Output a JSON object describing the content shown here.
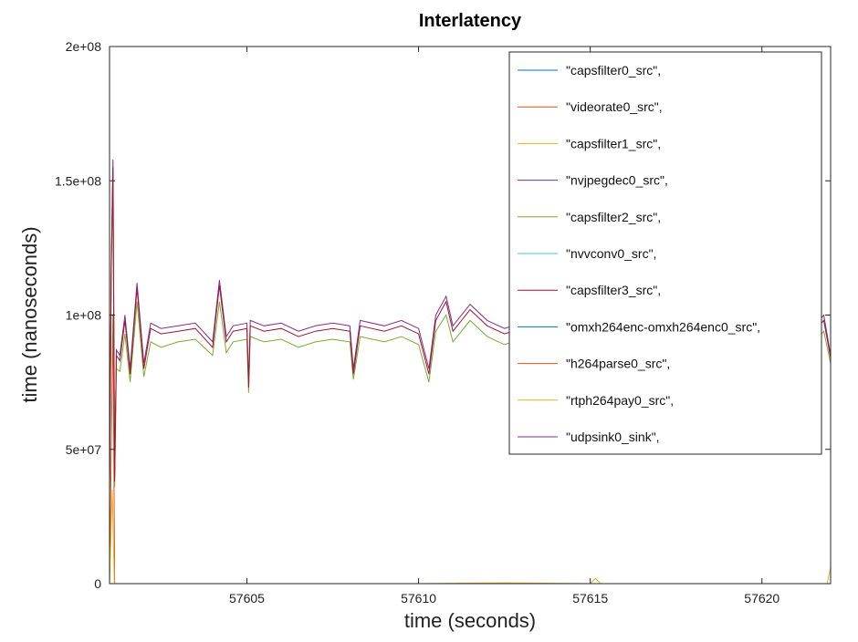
{
  "chart_data": {
    "type": "line",
    "title": "Interlatency",
    "xlabel": "time (seconds)",
    "ylabel": "time (nanoseconds)",
    "xlim": [
      57601.0,
      57622.0
    ],
    "ylim": [
      0,
      200000000
    ],
    "xticks": [
      57605,
      57610,
      57615,
      57620
    ],
    "xtick_labels": [
      "57605",
      "57610",
      "57615",
      "57620"
    ],
    "yticks": [
      0,
      50000000,
      100000000,
      150000000,
      200000000
    ],
    "ytick_labels": [
      "0",
      "5e+07",
      "1e+08",
      "1.5e+08",
      "2e+08"
    ],
    "grid": false,
    "legend_position": "top-right",
    "series": [
      {
        "name": "\"capsfilter0_src\",",
        "color": "#0072bd",
        "x": [
          57601.0,
          57622.0
        ],
        "values": [
          0,
          0
        ]
      },
      {
        "name": "\"videorate0_src\",",
        "color": "#d95319",
        "x": [
          57601.0,
          57601.1,
          57601.15,
          57601.2,
          57622.0
        ],
        "values": [
          0,
          100000000,
          0,
          0,
          0
        ]
      },
      {
        "name": "\"capsfilter1_src\",",
        "color": "#edb120",
        "x": [
          57601.0,
          57601.08,
          57601.14,
          57601.2,
          57605.0,
          57610.0,
          57612.5,
          57615.0,
          57615.15,
          57615.3,
          57620.0,
          57621.9,
          57622.0
        ],
        "values": [
          0,
          35000000,
          0,
          0,
          0,
          0,
          300000,
          0,
          2000000,
          0,
          0,
          0,
          6000000
        ]
      },
      {
        "name": "\"nvjpegdec0_src\",",
        "color": "#7e2f8e",
        "x": [
          57601.0,
          57601.05,
          57601.1,
          57601.15,
          57601.2,
          57601.3,
          57601.45,
          57601.6,
          57601.8,
          57602.0,
          57602.2,
          57602.5,
          57603.0,
          57603.5,
          57604.0,
          57604.2,
          57604.4,
          57604.6,
          57605.0,
          57605.05,
          57605.1,
          57605.5,
          57606.0,
          57606.5,
          57607.0,
          57607.5,
          57608.0,
          57608.1,
          57608.3,
          57609.0,
          57609.5,
          57610.0,
          57610.3,
          57610.5,
          57610.8,
          57611.0,
          57611.5,
          57612.0,
          57612.5,
          57613.0,
          57613.5,
          57614.0,
          57614.5,
          57614.8,
          57615.0,
          57615.5,
          57616.0,
          57616.5,
          57617.0,
          57617.5,
          57617.7,
          57618.0,
          57618.5,
          57619.0,
          57619.5,
          57620.0,
          57620.5,
          57620.8,
          57621.0,
          57621.3,
          57621.6,
          57621.8,
          57622.0
        ],
        "values": [
          35000000,
          120000000,
          158000000,
          40000000,
          87000000,
          85000000,
          100000000,
          80000000,
          112000000,
          82000000,
          97000000,
          95000000,
          96000000,
          97000000,
          90000000,
          113000000,
          92000000,
          96000000,
          97000000,
          75000000,
          98000000,
          96000000,
          97000000,
          94000000,
          96000000,
          97000000,
          96000000,
          80000000,
          98000000,
          96000000,
          98000000,
          95000000,
          80000000,
          100000000,
          107000000,
          96000000,
          104000000,
          98000000,
          95000000,
          97000000,
          96000000,
          95000000,
          97000000,
          75000000,
          96000000,
          98000000,
          96000000,
          97000000,
          95000000,
          96000000,
          75000000,
          98000000,
          96000000,
          97000000,
          95000000,
          96000000,
          97000000,
          78000000,
          96000000,
          95000000,
          97000000,
          100000000,
          85000000
        ]
      },
      {
        "name": "\"capsfilter2_src\",",
        "color": "#77ac30",
        "x": [
          57601.0,
          57601.05,
          57601.1,
          57601.15,
          57601.2,
          57601.3,
          57601.45,
          57601.6,
          57601.8,
          57602.0,
          57602.2,
          57602.5,
          57603.0,
          57603.5,
          57604.0,
          57604.2,
          57604.4,
          57604.6,
          57605.0,
          57605.05,
          57605.1,
          57605.5,
          57606.0,
          57606.5,
          57607.0,
          57607.5,
          57608.0,
          57608.1,
          57608.3,
          57609.0,
          57609.5,
          57610.0,
          57610.3,
          57610.5,
          57610.8,
          57611.0,
          57611.5,
          57612.0,
          57612.5,
          57613.0,
          57613.5,
          57614.0,
          57614.5,
          57614.8,
          57615.0,
          57615.5,
          57616.0,
          57616.5,
          57617.0,
          57617.5,
          57617.7,
          57618.0,
          57618.5,
          57619.0,
          57619.5,
          57620.0,
          57620.5,
          57620.8,
          57621.0,
          57621.3,
          57621.6,
          57621.8,
          57622.0
        ],
        "values": [
          33000000,
          115000000,
          150000000,
          36000000,
          80000000,
          79000000,
          93000000,
          75000000,
          105000000,
          77000000,
          90000000,
          88000000,
          90000000,
          91000000,
          85000000,
          105000000,
          86000000,
          90000000,
          91000000,
          71000000,
          92000000,
          90000000,
          91000000,
          88000000,
          90000000,
          91000000,
          90000000,
          76000000,
          92000000,
          90000000,
          92000000,
          89000000,
          75000000,
          94000000,
          100000000,
          90000000,
          98000000,
          92000000,
          89000000,
          91000000,
          90000000,
          89000000,
          91000000,
          71000000,
          90000000,
          92000000,
          90000000,
          91000000,
          89000000,
          90000000,
          71000000,
          92000000,
          90000000,
          91000000,
          89000000,
          90000000,
          91000000,
          74000000,
          90000000,
          89000000,
          91000000,
          94000000,
          82000000
        ]
      },
      {
        "name": "\"nvvconv0_src\",",
        "color": "#4dbeee",
        "x": [
          57601.0,
          57622.0
        ],
        "values": [
          0,
          0
        ]
      },
      {
        "name": "\"capsfilter3_src\",",
        "color": "#a2142f",
        "x": [
          57601.0,
          57601.05,
          57601.1,
          57601.15,
          57601.2,
          57601.3,
          57601.45,
          57601.6,
          57601.8,
          57602.0,
          57602.2,
          57602.5,
          57603.0,
          57603.5,
          57604.0,
          57604.2,
          57604.4,
          57604.6,
          57605.0,
          57605.05,
          57605.1,
          57605.5,
          57606.0,
          57606.5,
          57607.0,
          57607.5,
          57608.0,
          57608.1,
          57608.3,
          57609.0,
          57609.5,
          57610.0,
          57610.3,
          57610.5,
          57610.8,
          57611.0,
          57611.5,
          57612.0,
          57612.5,
          57613.0,
          57613.5,
          57614.0,
          57614.5,
          57614.8,
          57615.0,
          57615.5,
          57616.0,
          57616.5,
          57617.0,
          57617.5,
          57617.7,
          57618.0,
          57618.5,
          57619.0,
          57619.5,
          57620.0,
          57620.5,
          57620.8,
          57621.0,
          57621.3,
          57621.6,
          57621.8,
          57622.0
        ],
        "values": [
          34000000,
          118000000,
          155000000,
          38000000,
          85000000,
          83000000,
          98000000,
          78000000,
          110000000,
          80000000,
          95000000,
          93000000,
          94000000,
          95000000,
          88000000,
          111000000,
          90000000,
          94000000,
          95000000,
          73000000,
          96000000,
          94000000,
          95000000,
          92000000,
          94000000,
          95000000,
          94000000,
          78000000,
          96000000,
          94000000,
          96000000,
          93000000,
          78000000,
          98000000,
          105000000,
          94000000,
          102000000,
          96000000,
          93000000,
          95000000,
          94000000,
          93000000,
          95000000,
          73000000,
          94000000,
          96000000,
          94000000,
          95000000,
          93000000,
          94000000,
          73000000,
          96000000,
          94000000,
          95000000,
          93000000,
          94000000,
          95000000,
          76000000,
          94000000,
          93000000,
          95000000,
          98000000,
          84000000
        ]
      },
      {
        "name": "\"omxh264enc-omxh264enc0_src\",",
        "color": "#0072bd",
        "x": [
          57601.0,
          57622.0
        ],
        "values": [
          0,
          0
        ]
      },
      {
        "name": "\"h264parse0_src\",",
        "color": "#d95319",
        "x": [
          57601.0,
          57622.0
        ],
        "values": [
          0,
          0
        ]
      },
      {
        "name": "\"rtph264pay0_src\",",
        "color": "#edb120",
        "x": [
          57601.0,
          57622.0
        ],
        "values": [
          0,
          0
        ]
      },
      {
        "name": "\"udpsink0_sink\",",
        "color": "#7e2f8e",
        "x": [
          57601.0,
          57622.0
        ],
        "values": [
          0,
          0
        ]
      }
    ]
  }
}
